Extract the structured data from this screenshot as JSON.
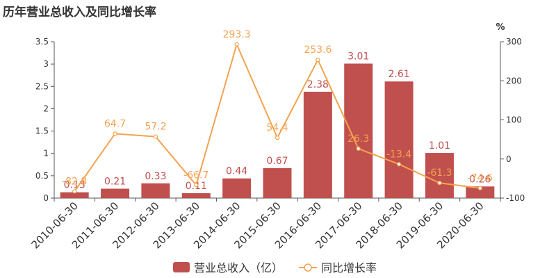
{
  "title": "历年营业总收入及同比增长率",
  "chart_data": {
    "type": "bar",
    "categories": [
      "2010-06-30",
      "2011-06-30",
      "2012-06-30",
      "2013-06-30",
      "2014-06-30",
      "2015-06-30",
      "2016-06-30",
      "2017-06-30",
      "2018-06-30",
      "2019-06-30",
      "2020-06-30"
    ],
    "series": [
      {
        "name": "营业总收入（亿）",
        "type": "bar",
        "axis": "left",
        "values": [
          0.13,
          0.21,
          0.33,
          0.11,
          0.44,
          0.67,
          2.38,
          3.01,
          2.61,
          1.01,
          0.26
        ],
        "labels": [
          "0.13",
          "0.21",
          "0.33",
          "0.11",
          "0.44",
          "0.67",
          "2.38",
          "3.01",
          "2.61",
          "1.01",
          "0.26"
        ]
      },
      {
        "name": "同比增长率",
        "type": "line",
        "axis": "right",
        "values": [
          -82.8,
          64.7,
          57.2,
          -66.7,
          293.3,
          54.4,
          253.6,
          26.3,
          -13.4,
          -61.3,
          -74.6
        ],
        "labels": [
          "-82.8",
          "64.7",
          "57.2",
          "-66.7",
          "293.3",
          "54.4",
          "253.6",
          "26.3",
          "-13.4",
          "-61.3",
          "-74.6"
        ]
      }
    ],
    "y_left": {
      "ylim": [
        0,
        3.5
      ],
      "ticks": [
        0,
        0.5,
        1,
        1.5,
        2,
        2.5,
        3,
        3.5
      ],
      "tick_labels": [
        "0",
        "0.5",
        "1",
        "1.5",
        "2",
        "2.5",
        "3",
        "3.5"
      ]
    },
    "y_right": {
      "ylim": [
        -100,
        300
      ],
      "ticks": [
        -100,
        0,
        100,
        200,
        300
      ],
      "tick_labels": [
        "-100",
        "0",
        "100",
        "200",
        "300"
      ],
      "unit": "%"
    },
    "grid": false,
    "legend_position": "bottom-center",
    "colors": {
      "bar": "#c0504d",
      "line": "#f4a24e"
    }
  }
}
